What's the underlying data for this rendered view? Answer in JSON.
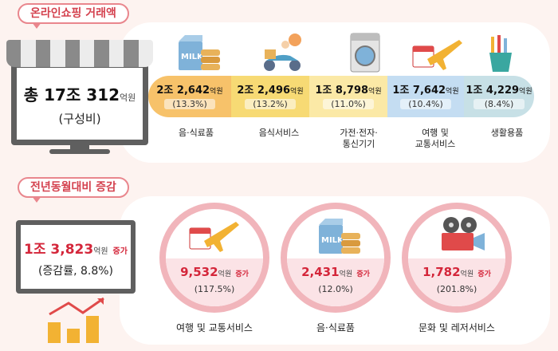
{
  "section1": {
    "title": "온라인쇼핑 거래액",
    "total_value": "총 17조 312",
    "total_unit": "억원",
    "total_sub": "(구성비)",
    "categories": [
      {
        "value": "2조 2,642",
        "unit": "억원",
        "pct": "(13.3%)",
        "label_lines": [
          "음·식료품"
        ],
        "color": "#f7c26a",
        "icon": "milk-food-icon"
      },
      {
        "value": "2조 2,496",
        "unit": "억원",
        "pct": "(13.2%)",
        "label_lines": [
          "음식서비스"
        ],
        "color": "#f7da74",
        "icon": "delivery-scooter-icon"
      },
      {
        "value": "1조 8,798",
        "unit": "억원",
        "pct": "(11.0%)",
        "label_lines": [
          "가전·전자·",
          "통신기기"
        ],
        "color": "#fbe9a6",
        "icon": "washing-machine-icon"
      },
      {
        "value": "1조 7,642",
        "unit": "억원",
        "pct": "(10.4%)",
        "label_lines": [
          "여행 및",
          "교통서비스"
        ],
        "color": "#c4ddf2",
        "icon": "airplane-calendar-icon"
      },
      {
        "value": "1조 4,229",
        "unit": "억원",
        "pct": "(8.4%)",
        "label_lines": [
          "생활용품"
        ],
        "color": "#c7e0e6",
        "icon": "toiletries-icon"
      }
    ]
  },
  "section2": {
    "title": "전년동월대비 증감",
    "total_value": "1조 3,823",
    "total_unit": "억원",
    "total_inc": "증가",
    "total_sub": "(증감률, 8.8%)",
    "items": [
      {
        "value": "9,532",
        "unit": "억원",
        "inc": "증가",
        "pct": "(117.5%)",
        "label": "여행 및 교통서비스",
        "icon": "airplane-calendar-icon"
      },
      {
        "value": "2,431",
        "unit": "억원",
        "inc": "증가",
        "pct": "(12.0%)",
        "label": "음·식료품",
        "icon": "milk-food-icon"
      },
      {
        "value": "1,782",
        "unit": "억원",
        "inc": "증가",
        "pct": "(201.8%)",
        "label": "문화 및 레저서비스",
        "icon": "movie-camera-icon"
      }
    ]
  }
}
